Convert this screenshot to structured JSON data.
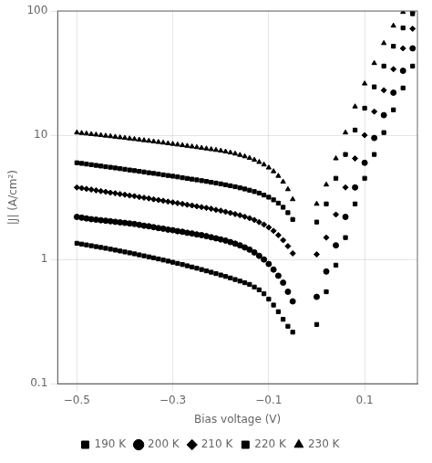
{
  "chart_data": {
    "type": "scatter",
    "xlabel": "Bias voltage (V)",
    "ylabel": "|J| (A/cm²)",
    "log": "y",
    "grid": true,
    "legend": "bottom",
    "xlim": [
      -0.54,
      0.21
    ],
    "ylim": [
      0.1,
      100
    ],
    "xticks": [
      {
        "value": -0.5,
        "label": "−0.5"
      },
      {
        "value": -0.3,
        "label": "−0.3"
      },
      {
        "value": -0.1,
        "label": "−0.1"
      },
      {
        "value": 0.1,
        "label": "0.1"
      }
    ],
    "yticks": [
      0.1,
      1,
      10,
      100
    ],
    "x": [
      -0.5,
      -0.49,
      -0.48,
      -0.47,
      -0.46,
      -0.45,
      -0.44,
      -0.43,
      -0.42,
      -0.41,
      -0.4,
      -0.39,
      -0.38,
      -0.37,
      -0.36,
      -0.35,
      -0.34,
      -0.33,
      -0.32,
      -0.31,
      -0.3,
      -0.29,
      -0.28,
      -0.27,
      -0.26,
      -0.25,
      -0.24,
      -0.23,
      -0.22,
      -0.21,
      -0.2,
      -0.19,
      -0.18,
      -0.17,
      -0.16,
      -0.15,
      -0.14,
      -0.13,
      -0.12,
      -0.11,
      -0.1,
      -0.09,
      -0.08,
      -0.07,
      -0.06,
      -0.05,
      0.0,
      0.02,
      0.04,
      0.06,
      0.08,
      0.1,
      0.12,
      0.14,
      0.16,
      0.18,
      0.2
    ],
    "series": [
      {
        "name": "190 K",
        "marker": "square",
        "color": "#000000",
        "values": [
          1.35,
          1.33,
          1.31,
          1.29,
          1.27,
          1.25,
          1.23,
          1.21,
          1.19,
          1.17,
          1.15,
          1.13,
          1.11,
          1.09,
          1.07,
          1.05,
          1.03,
          1.01,
          0.99,
          0.97,
          0.95,
          0.93,
          0.91,
          0.89,
          0.87,
          0.85,
          0.83,
          0.81,
          0.79,
          0.77,
          0.75,
          0.73,
          0.71,
          0.69,
          0.67,
          0.65,
          0.63,
          0.6,
          0.57,
          0.53,
          0.48,
          0.43,
          0.38,
          0.33,
          0.29,
          0.26,
          0.3,
          0.55,
          0.9,
          1.5,
          2.8,
          4.5,
          7.0,
          10.5,
          16.0,
          24.0,
          36.0
        ]
      },
      {
        "name": "200 K",
        "marker": "circle",
        "color": "#000000",
        "values": [
          2.2,
          2.17,
          2.14,
          2.11,
          2.09,
          2.07,
          2.05,
          2.03,
          2.01,
          1.99,
          1.97,
          1.95,
          1.93,
          1.9,
          1.87,
          1.85,
          1.82,
          1.79,
          1.77,
          1.74,
          1.72,
          1.69,
          1.67,
          1.64,
          1.62,
          1.59,
          1.57,
          1.54,
          1.51,
          1.48,
          1.45,
          1.42,
          1.38,
          1.34,
          1.3,
          1.25,
          1.2,
          1.14,
          1.07,
          1.0,
          0.92,
          0.83,
          0.74,
          0.65,
          0.55,
          0.46,
          0.5,
          0.8,
          1.3,
          2.2,
          3.8,
          6.0,
          9.5,
          14.5,
          22.0,
          33.0,
          50.0
        ]
      },
      {
        "name": "210 K",
        "marker": "diamond",
        "color": "#000000",
        "values": [
          3.8,
          3.75,
          3.7,
          3.65,
          3.6,
          3.55,
          3.5,
          3.45,
          3.41,
          3.36,
          3.32,
          3.27,
          3.23,
          3.18,
          3.14,
          3.1,
          3.05,
          3.01,
          2.97,
          2.92,
          2.88,
          2.84,
          2.8,
          2.76,
          2.72,
          2.68,
          2.64,
          2.6,
          2.56,
          2.51,
          2.47,
          2.42,
          2.37,
          2.32,
          2.27,
          2.21,
          2.15,
          2.08,
          2.0,
          1.91,
          1.81,
          1.7,
          1.57,
          1.43,
          1.28,
          1.12,
          1.1,
          1.5,
          2.3,
          3.8,
          6.5,
          10.0,
          15.5,
          23.0,
          34.0,
          50.0,
          72.0
        ]
      },
      {
        "name": "220 K",
        "marker": "square",
        "color": "#000000",
        "values": [
          6.0,
          5.93,
          5.86,
          5.79,
          5.72,
          5.65,
          5.58,
          5.52,
          5.45,
          5.38,
          5.32,
          5.25,
          5.19,
          5.12,
          5.06,
          4.99,
          4.93,
          4.87,
          4.8,
          4.74,
          4.68,
          4.62,
          4.55,
          4.49,
          4.43,
          4.37,
          4.31,
          4.25,
          4.18,
          4.12,
          4.06,
          3.99,
          3.92,
          3.85,
          3.77,
          3.69,
          3.61,
          3.52,
          3.42,
          3.3,
          3.17,
          3.02,
          2.84,
          2.63,
          2.38,
          2.1,
          2.0,
          2.8,
          4.5,
          7.0,
          11.0,
          16.5,
          24.5,
          36.0,
          52.0,
          73.0,
          95.0
        ]
      },
      {
        "name": "230 K",
        "marker": "triangle",
        "color": "#000000",
        "values": [
          10.5,
          10.4,
          10.3,
          10.2,
          10.1,
          10.0,
          9.9,
          9.8,
          9.7,
          9.6,
          9.5,
          9.4,
          9.3,
          9.2,
          9.1,
          9.0,
          8.9,
          8.8,
          8.7,
          8.6,
          8.5,
          8.4,
          8.3,
          8.2,
          8.1,
          8.0,
          7.9,
          7.8,
          7.7,
          7.6,
          7.5,
          7.38,
          7.25,
          7.1,
          6.93,
          6.75,
          6.55,
          6.33,
          6.08,
          5.8,
          5.48,
          5.12,
          4.7,
          4.22,
          3.67,
          3.05,
          2.8,
          4.0,
          6.5,
          10.5,
          17.0,
          26.0,
          38.0,
          55.0,
          76.0,
          98.0,
          99.9
        ]
      }
    ]
  }
}
